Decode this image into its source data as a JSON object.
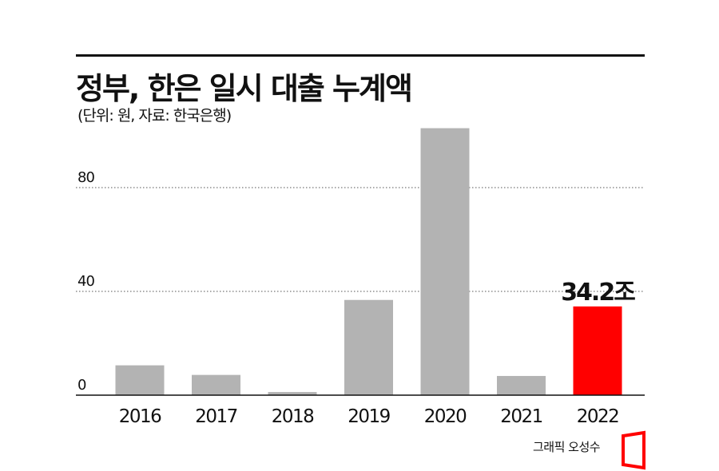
{
  "header": {
    "title": "정부, 한은 일시 대출 누계액",
    "subtitle": "(단위: 원, 자료: 한국은행)"
  },
  "credit": "그래픽 오성수",
  "colors": {
    "bar": "#b3b3b3",
    "highlight": "#ff0000",
    "text": "#111111"
  },
  "chart_data": {
    "type": "bar",
    "categories": [
      "2016",
      "2017",
      "2018",
      "2019",
      "2020",
      "2021",
      "2022"
    ],
    "values": [
      11.5,
      7.8,
      1.2,
      36.7,
      102.9,
      7.4,
      34.2
    ],
    "y_ticks": [
      "0",
      "40",
      "80"
    ],
    "ylim": [
      0,
      100
    ],
    "grid": "dotted horizontal",
    "highlight_index": 6,
    "annotation": "34.2조",
    "title": "",
    "xlabel": "",
    "ylabel": ""
  }
}
